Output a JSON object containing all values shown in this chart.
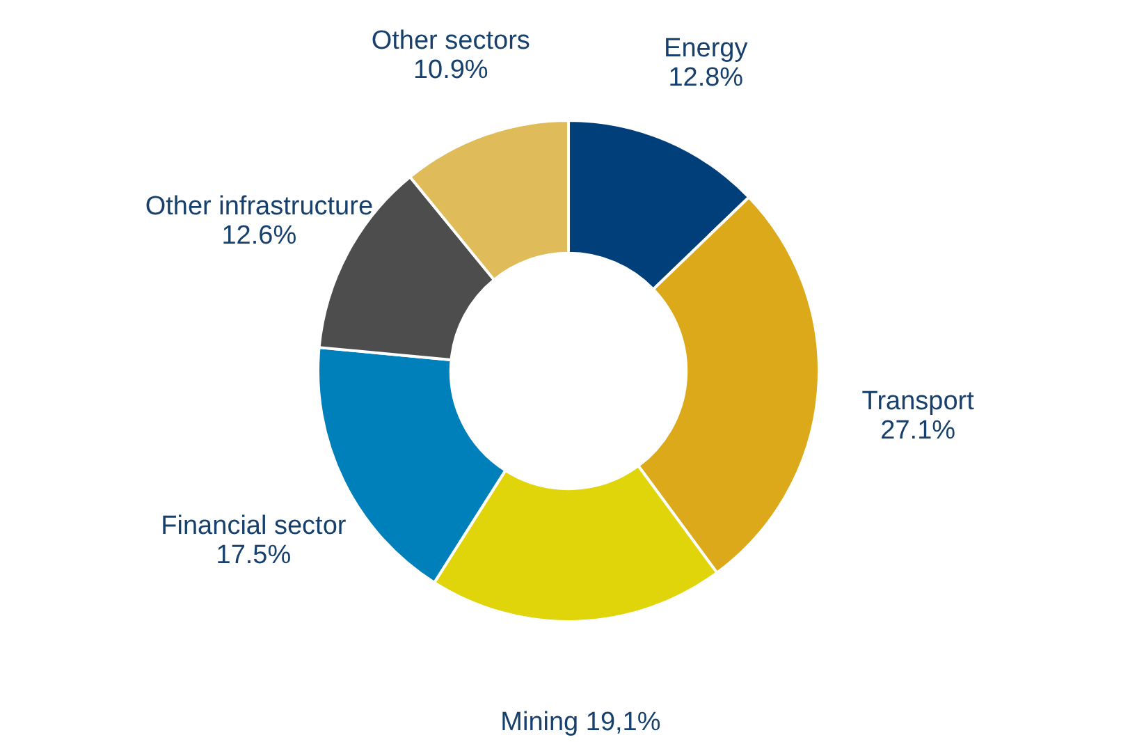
{
  "chart_data": {
    "type": "donut",
    "categories": [
      "Energy",
      "Transport",
      "Mining",
      "Financial sector",
      "Other infrastructure",
      "Other sectors"
    ],
    "values": [
      12.8,
      27.1,
      19.1,
      17.5,
      12.6,
      10.9
    ],
    "value_labels": [
      "12.8%",
      "27.1%",
      "19,1%",
      "17.5%",
      "12.6%",
      "10.9%"
    ],
    "colors": [
      "#003f7a",
      "#dba919",
      "#e0d40a",
      "#0080bb",
      "#4d4d4d",
      "#dfbb5a"
    ]
  }
}
